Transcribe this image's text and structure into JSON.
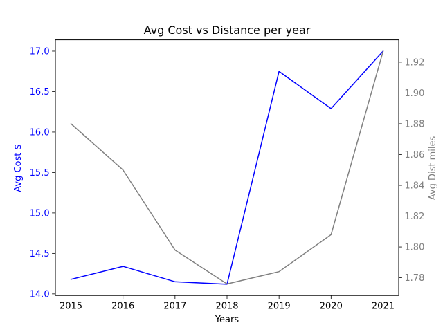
{
  "chart_data": {
    "type": "line",
    "title": "Avg Cost vs Distance per year",
    "xlabel": "Years",
    "categories": [
      "2015",
      "2016",
      "2017",
      "2018",
      "2019",
      "2020",
      "2021"
    ],
    "x": [
      2015,
      2016,
      2017,
      2018,
      2019,
      2020,
      2021
    ],
    "xticks": [
      "2015",
      "2016",
      "2017",
      "2018",
      "2019",
      "2020",
      "2021"
    ],
    "xlim": [
      2014.7,
      2021.3
    ],
    "grid": false,
    "series": [
      {
        "axis": "left",
        "color": "#0000ff",
        "values": [
          14.18,
          14.34,
          14.15,
          14.12,
          16.75,
          16.29,
          17.0
        ]
      },
      {
        "axis": "right",
        "color": "#808080",
        "values": [
          1.88,
          1.85,
          1.798,
          1.776,
          1.784,
          1.808,
          1.927
        ]
      }
    ],
    "y_left": {
      "label": "Avg Cost $",
      "color": "#0000ff",
      "lim": [
        13.98,
        17.14
      ],
      "ticks": [
        "14.0",
        "14.5",
        "15.0",
        "15.5",
        "16.0",
        "16.5",
        "17.0"
      ]
    },
    "y_right": {
      "label": "Avg Dist miles",
      "color": "#808080",
      "lim": [
        1.7685,
        1.9345
      ],
      "ticks": [
        "1.78",
        "1.80",
        "1.82",
        "1.84",
        "1.86",
        "1.88",
        "1.90",
        "1.92"
      ]
    }
  }
}
